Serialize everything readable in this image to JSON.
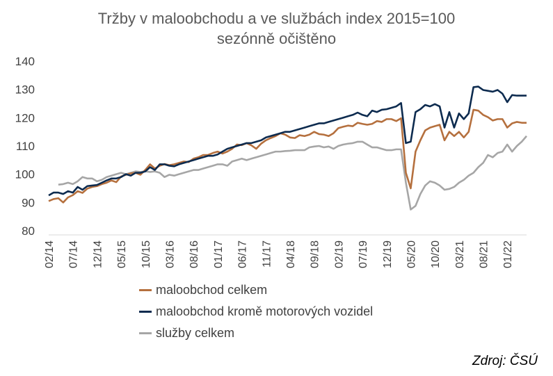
{
  "chart_data": {
    "type": "line",
    "title": [
      "Tržby v maloobchodu a ve službách index 2015=100",
      "sezónně očištěno"
    ],
    "ylim": [
      80,
      140
    ],
    "yticks": [
      80,
      90,
      100,
      110,
      120,
      130,
      140
    ],
    "x_start": "02/14",
    "x_end": "05/22",
    "xtick_labels": [
      "02/14",
      "07/14",
      "12/14",
      "05/15",
      "10/15",
      "03/16",
      "08/16",
      "01/17",
      "06/17",
      "11/17",
      "04/18",
      "09/18",
      "02/19",
      "07/19",
      "12/19",
      "05/20",
      "10/20",
      "03/21",
      "08/21",
      "01/22"
    ],
    "grid": false,
    "legend_position": "bottom",
    "series": [
      {
        "name": "maloobchod celkem",
        "color": "#B5703E",
        "values": [
          90.5,
          91.2,
          91.5,
          90.0,
          91.8,
          92.6,
          94.0,
          93.4,
          94.9,
          95.5,
          95.8,
          96.5,
          97.0,
          97.8,
          97.2,
          99.2,
          99.8,
          100.3,
          100.5,
          99.8,
          101.5,
          103.5,
          102.0,
          103.0,
          103.6,
          103.2,
          103.5,
          104.0,
          104.5,
          104.3,
          105.5,
          106.0,
          106.8,
          106.8,
          107.5,
          108.0,
          107.3,
          108.0,
          109.0,
          110.5,
          110.3,
          111.0,
          110.2,
          109.0,
          110.8,
          112.0,
          112.8,
          113.5,
          114.5,
          114.0,
          113.0,
          112.8,
          113.8,
          113.5,
          114.0,
          115.0,
          114.2,
          114.0,
          113.5,
          114.5,
          116.3,
          116.8,
          117.2,
          117.0,
          118.2,
          117.8,
          117.5,
          117.8,
          118.8,
          118.5,
          119.5,
          119.5,
          118.8,
          119.8,
          100.5,
          95.0,
          108.0,
          112.0,
          115.5,
          116.5,
          117.0,
          117.5,
          112.0,
          115.0,
          113.5,
          115.0,
          113.0,
          115.0,
          122.8,
          122.5,
          121.0,
          120.2,
          119.0,
          119.5,
          119.5,
          116.5,
          118.0,
          118.5,
          118.2,
          118.2
        ]
      },
      {
        "name": "maloobchod kromě motorových vozidel",
        "color": "#0D2B4F",
        "values": [
          92.5,
          93.5,
          93.5,
          93.0,
          94.0,
          93.5,
          95.5,
          94.5,
          95.8,
          96.0,
          96.2,
          97.0,
          97.8,
          98.5,
          98.5,
          99.0,
          100.0,
          99.5,
          100.5,
          100.5,
          101.0,
          102.5,
          101.5,
          103.5,
          103.5,
          103.0,
          102.8,
          103.5,
          104.0,
          104.5,
          105.0,
          105.5,
          106.0,
          106.5,
          106.5,
          107.0,
          108.0,
          109.0,
          109.5,
          110.0,
          110.5,
          111.0,
          111.0,
          111.5,
          112.0,
          113.0,
          113.5,
          114.0,
          114.5,
          115.0,
          115.0,
          115.5,
          116.0,
          116.5,
          117.0,
          117.5,
          118.0,
          118.0,
          118.5,
          119.0,
          119.5,
          120.0,
          120.5,
          121.0,
          121.8,
          121.0,
          120.5,
          122.5,
          122.0,
          122.8,
          123.0,
          123.5,
          124.0,
          125.2,
          111.0,
          111.5,
          122.0,
          123.0,
          124.5,
          124.0,
          124.8,
          124.0,
          116.5,
          122.0,
          116.5,
          121.5,
          119.5,
          121.5,
          130.8,
          131.0,
          129.8,
          129.5,
          129.2,
          129.8,
          128.5,
          125.5,
          128.0,
          127.8,
          127.8,
          127.8
        ]
      },
      {
        "name": "služby celkem",
        "color": "#A6A6A6",
        "values": [
          null,
          null,
          96.3,
          96.5,
          97.0,
          96.5,
          97.5,
          99.0,
          98.5,
          98.5,
          97.5,
          98.0,
          99.0,
          99.5,
          100.0,
          100.5,
          100.0,
          100.5,
          101.0,
          100.8,
          101.0,
          100.8,
          101.0,
          100.5,
          99.0,
          99.8,
          99.5,
          100.0,
          100.5,
          101.0,
          101.5,
          101.5,
          102.0,
          102.5,
          103.0,
          103.5,
          103.5,
          103.0,
          104.5,
          105.0,
          105.5,
          105.0,
          105.5,
          106.0,
          106.5,
          107.0,
          107.5,
          108.0,
          108.0,
          108.2,
          108.3,
          108.5,
          108.5,
          108.5,
          109.5,
          109.8,
          110.0,
          109.5,
          109.8,
          109.0,
          110.0,
          110.5,
          110.8,
          111.0,
          111.5,
          111.5,
          110.5,
          109.5,
          109.5,
          109.0,
          108.5,
          108.5,
          108.8,
          108.8,
          97.0,
          87.5,
          88.8,
          93.0,
          96.0,
          97.5,
          97.0,
          96.0,
          94.5,
          94.8,
          95.5,
          97.0,
          98.0,
          99.5,
          100.5,
          102.5,
          104.0,
          106.8,
          106.0,
          107.5,
          108.0,
          110.5,
          108.0,
          110.0,
          111.5,
          113.5
        ]
      }
    ]
  },
  "legend": {
    "items": [
      "maloobchod celkem",
      "maloobchod kromě motorových vozidel",
      "služby celkem"
    ]
  },
  "source": "Zdroj: ČSÚ"
}
